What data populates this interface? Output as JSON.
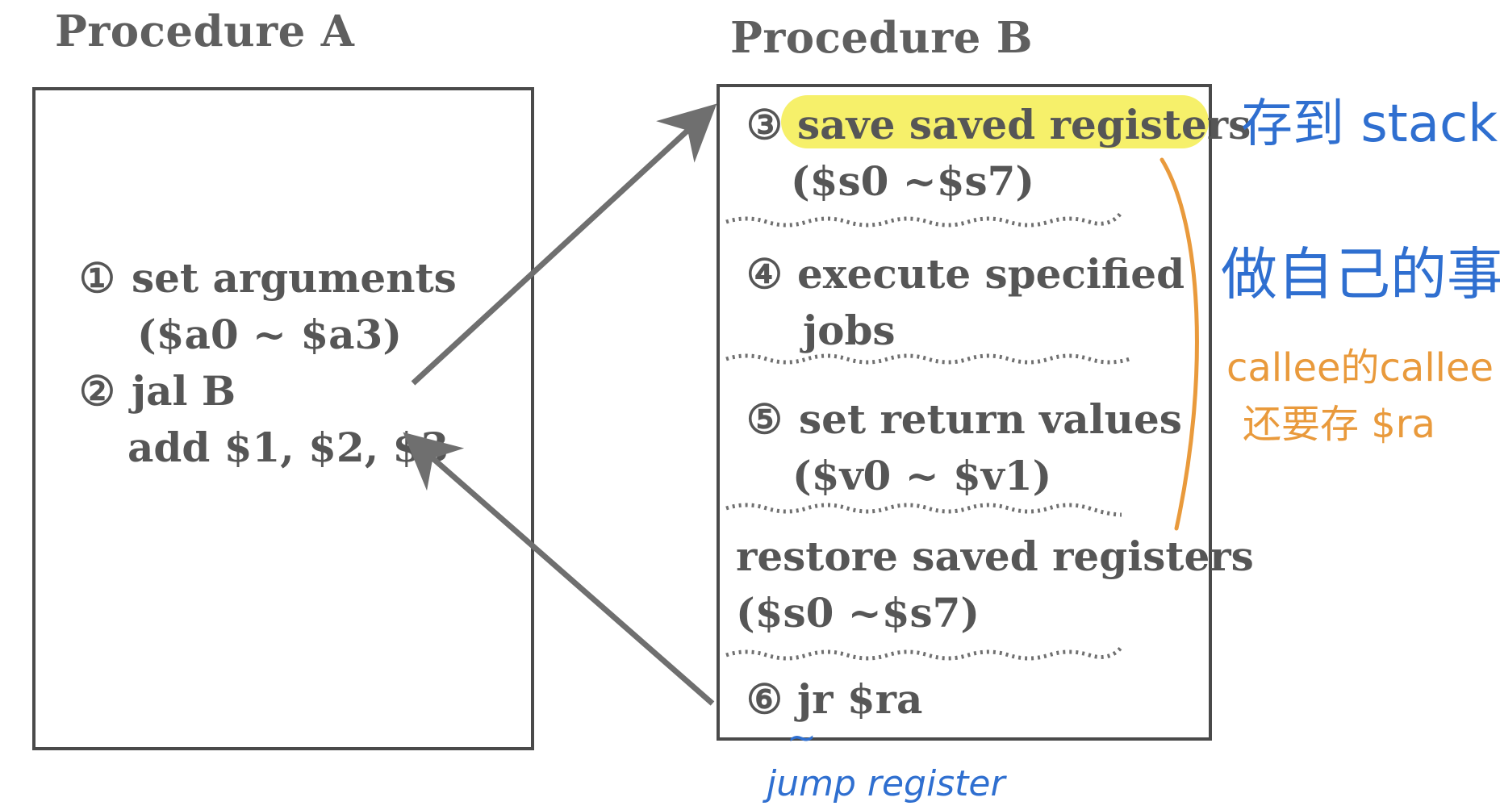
{
  "procedure_a": {
    "title": "Procedure A",
    "step1_num": "①",
    "step1_label": "set arguments",
    "step1_regs": "($a0 ~ $a3)",
    "step2_num": "②",
    "step2_label": "jal  B",
    "return_line": "add $1, $2, $3"
  },
  "procedure_b": {
    "title": "Procedure B",
    "step3_num": "③",
    "step3_label": "save saved registers",
    "step3_regs": "($s0 ~$s7)",
    "step4_num": "④",
    "step4_label": "execute specified",
    "step4_label2": "jobs",
    "step5_num": "⑤",
    "step5_label": "set return values",
    "step5_regs": "($v0 ~ $v1)",
    "restore_label": "restore saved registers",
    "restore_regs": "($s0 ~$s7)",
    "step6_num": "⑥",
    "step6_label": "jr $ra"
  },
  "notes": {
    "save_to_stack": "存到 stack",
    "do_own_work": "做自己的事",
    "callee_line1": "callee的callee",
    "callee_line2": "还要存 $ra",
    "tilde": "~",
    "jump_register": "jump register"
  },
  "colors": {
    "highlight": "#f6f06a",
    "note_blue": "#2f6fd0",
    "note_orange": "#e99a3c",
    "ink": "#565656"
  }
}
